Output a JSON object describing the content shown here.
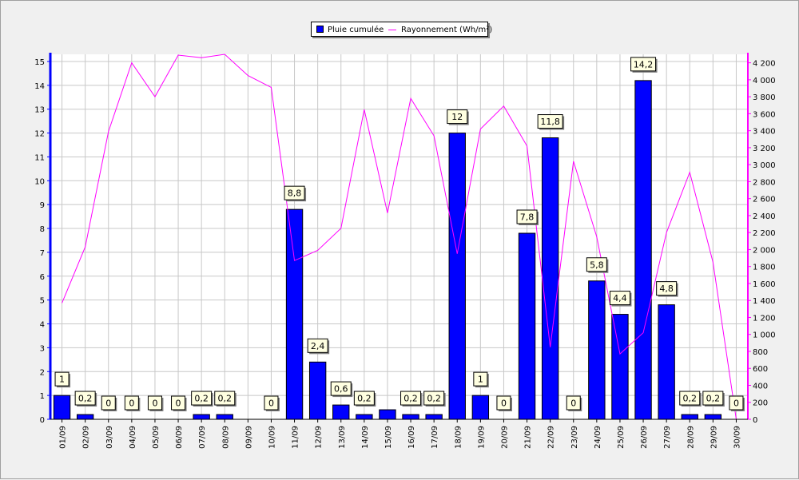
{
  "legend": {
    "rain_label": "Pluie cumulée",
    "radiation_label": "Rayonnement (Wh/m²)"
  },
  "colors": {
    "bar": "#0000ff",
    "bar_outline": "#000000",
    "line": "#ff00ff",
    "left_axis": "#0000ff",
    "right_axis": "#ff00ff",
    "grid": "#c8c8c8",
    "label_bg": "#ffffe1"
  },
  "chart_data": {
    "type": "bar",
    "title": "",
    "xlabel": "",
    "ylabel": "",
    "grid": true,
    "legend_position": "top-center",
    "categories": [
      "01/09",
      "02/09",
      "03/09",
      "04/09",
      "05/09",
      "06/09",
      "07/09",
      "08/09",
      "09/09",
      "10/09",
      "11/09",
      "12/09",
      "13/09",
      "14/09",
      "15/09",
      "16/09",
      "17/09",
      "18/09",
      "19/09",
      "20/09",
      "21/09",
      "22/09",
      "23/09",
      "24/09",
      "25/09",
      "26/09",
      "27/09",
      "28/09",
      "29/09",
      "30/09"
    ],
    "series": [
      {
        "name": "Pluie cumulée",
        "type": "bar",
        "axis": "left",
        "values": [
          1,
          0.2,
          0,
          0,
          0,
          0,
          0.2,
          0.2,
          0,
          0,
          8.8,
          2.4,
          0.6,
          0.2,
          0.4,
          0.2,
          0.2,
          12,
          1,
          0,
          7.8,
          11.8,
          0,
          5.8,
          4.4,
          14.2,
          4.8,
          0.2,
          0.2,
          0
        ],
        "data_labels": [
          "1",
          "0,2",
          "0",
          "0",
          "0",
          "0",
          "0,2",
          "0,2",
          "",
          "0",
          "8,8",
          "2,4",
          "0,6",
          "0,2",
          "",
          "0,2",
          "0,2",
          "12",
          "1",
          "0",
          "7,8",
          "11,8",
          "0",
          "5,8",
          "4,4",
          "14,2",
          "4,8",
          "0,2",
          "0,2",
          "0"
        ]
      },
      {
        "name": "Rayonnement (Wh/m²)",
        "type": "line",
        "axis": "right",
        "values": [
          1370,
          2030,
          3390,
          4200,
          3800,
          4290,
          4260,
          4300,
          4050,
          3910,
          1870,
          1990,
          2250,
          3650,
          2430,
          3780,
          3340,
          1950,
          3420,
          3690,
          3220,
          850,
          3040,
          2150,
          770,
          1020,
          2200,
          2910,
          1850,
          0
        ]
      }
    ],
    "y_left": {
      "min": 0,
      "max": 15.3,
      "ticks": [
        "0",
        "1",
        "2",
        "3",
        "4",
        "5",
        "6",
        "7",
        "8",
        "9",
        "10",
        "11",
        "12",
        "13",
        "14",
        "15"
      ]
    },
    "y_right": {
      "min": 0,
      "max": 4300,
      "ticks": [
        "0",
        "200",
        "400",
        "600",
        "800",
        "1 000",
        "1 200",
        "1 400",
        "1 600",
        "1 800",
        "2 000",
        "2 200",
        "2 400",
        "2 600",
        "2 800",
        "3 000",
        "3 200",
        "3 400",
        "3 600",
        "3 800",
        "4 000",
        "4 200"
      ]
    }
  }
}
